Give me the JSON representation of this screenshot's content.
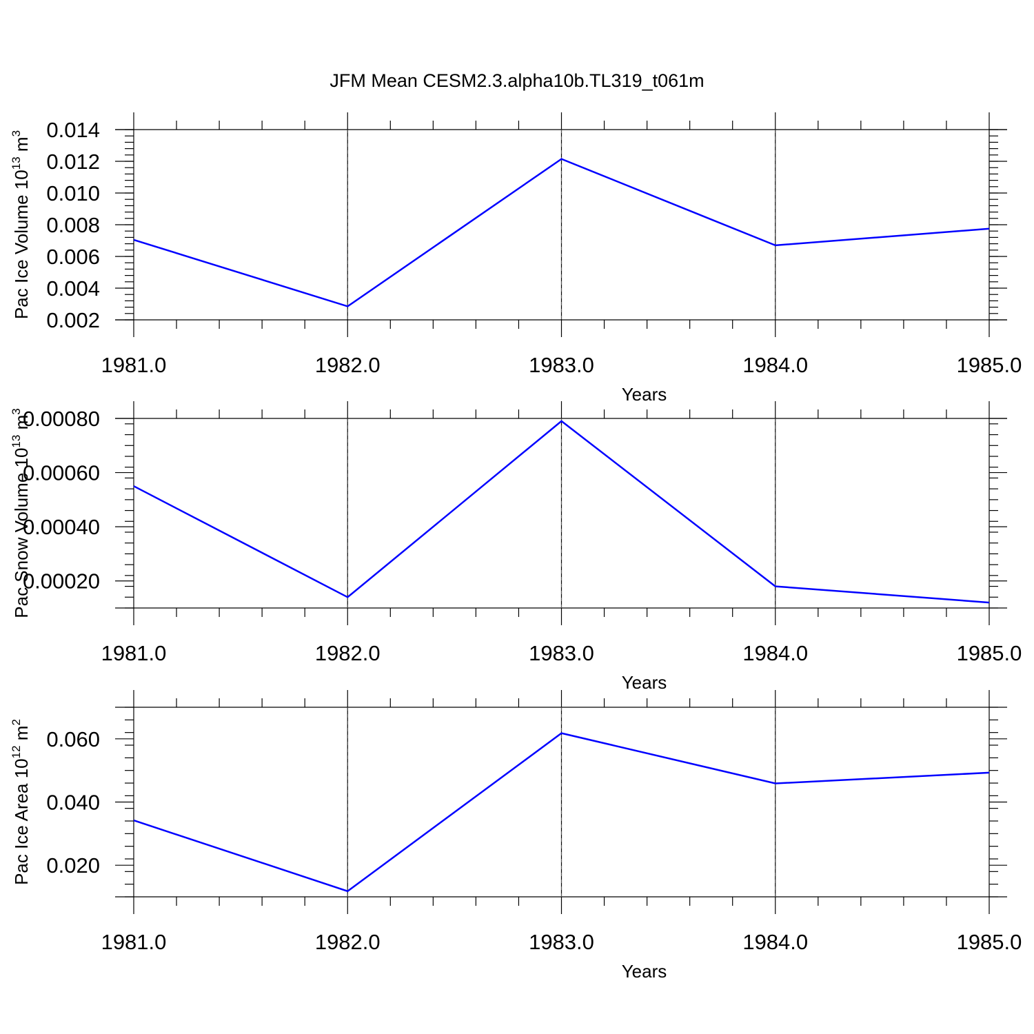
{
  "title": "JFM Mean CESM2.3.alpha10b.TL319_t061m",
  "line_color": "#0000ff",
  "chart_data": [
    {
      "type": "line",
      "title": "JFM Mean CESM2.3.alpha10b.TL319_t061m",
      "xlabel": "Years",
      "ylabel": "Pac Ice Volume 10",
      "ylabel_exp": "13",
      "ylabel_unit": " m",
      "ylabel_unit_exp": "3",
      "x": [
        1981.0,
        1982.0,
        1983.0,
        1984.0,
        1985.0
      ],
      "x_tick_labels": [
        "1981.0",
        "1982.0",
        "1983.0",
        "1984.0",
        "1985.0"
      ],
      "y_ticks": [
        0.002,
        0.004,
        0.006,
        0.008,
        0.01,
        0.012,
        0.014
      ],
      "y_tick_labels": [
        "0.002",
        "0.004",
        "0.006",
        "0.008",
        "0.010",
        "0.012",
        "0.014"
      ],
      "xlim": [
        1981.0,
        1985.0
      ],
      "ylim": [
        0.002,
        0.014
      ],
      "grid": "vertical dashed at major x ticks",
      "series": [
        {
          "values": [
            0.00705,
            0.00285,
            0.01215,
            0.0067,
            0.00775
          ],
          "color": "#0000ff"
        }
      ]
    },
    {
      "type": "line",
      "xlabel": "Years",
      "ylabel": "Pac Snow Volume 10",
      "ylabel_exp": "13",
      "ylabel_unit": " m",
      "ylabel_unit_exp": "3",
      "x": [
        1981.0,
        1982.0,
        1983.0,
        1984.0,
        1985.0
      ],
      "x_tick_labels": [
        "1981.0",
        "1982.0",
        "1983.0",
        "1984.0",
        "1985.0"
      ],
      "y_ticks": [
        0.0002,
        0.0004,
        0.0006,
        0.0008
      ],
      "y_tick_labels": [
        "0.00020",
        "0.00040",
        "0.00060",
        "0.00080"
      ],
      "xlim": [
        1981.0,
        1985.0
      ],
      "ylim": [
        0.0001,
        0.0008
      ],
      "grid": "vertical dashed at major x ticks",
      "series": [
        {
          "values": [
            0.00055,
            0.00014,
            0.00079,
            0.00018,
            0.00012
          ],
          "color": "#0000ff"
        }
      ]
    },
    {
      "type": "line",
      "xlabel": "Years",
      "ylabel": "Pac Ice Area 10",
      "ylabel_exp": "12",
      "ylabel_unit": " m",
      "ylabel_unit_exp": "2",
      "x": [
        1981.0,
        1982.0,
        1983.0,
        1984.0,
        1985.0
      ],
      "x_tick_labels": [
        "1981.0",
        "1982.0",
        "1983.0",
        "1984.0",
        "1985.0"
      ],
      "y_ticks": [
        0.02,
        0.04,
        0.06
      ],
      "y_tick_labels": [
        "0.020",
        "0.040",
        "0.060"
      ],
      "xlim": [
        1981.0,
        1985.0
      ],
      "ylim": [
        0.01,
        0.07
      ],
      "grid": "vertical dashed at major x ticks",
      "series": [
        {
          "values": [
            0.0342,
            0.0118,
            0.0618,
            0.0459,
            0.0493
          ],
          "color": "#0000ff"
        }
      ]
    }
  ]
}
